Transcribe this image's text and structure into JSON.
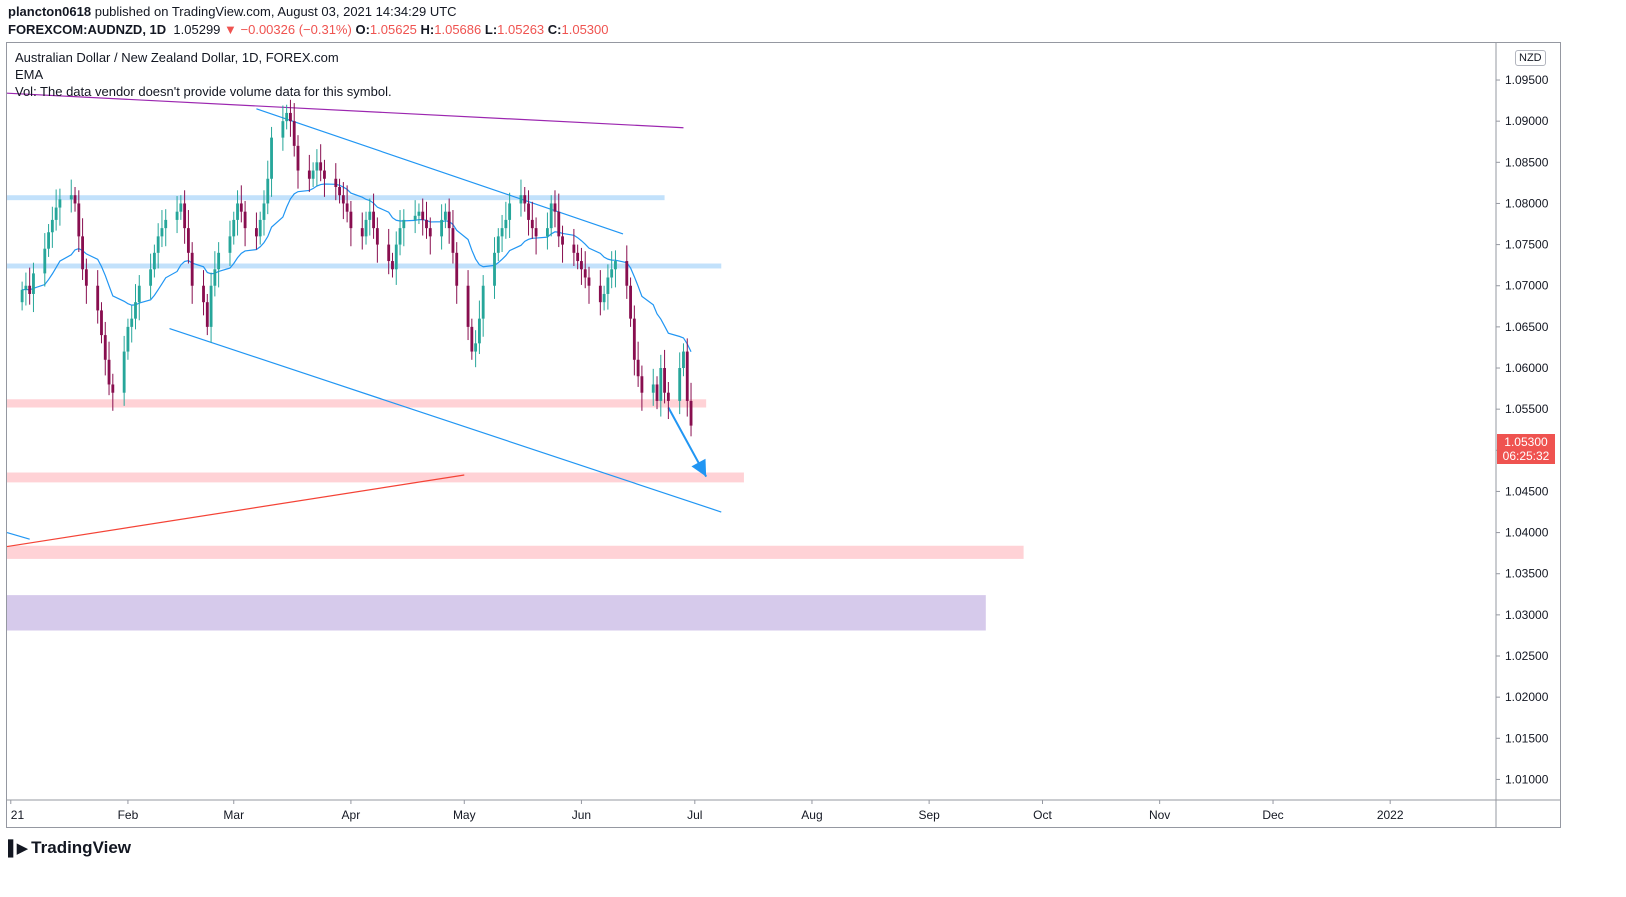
{
  "header": {
    "publisher": "plancton0618",
    "published_text": "published on TradingView.com, August 03, 2021 14:34:29 UTC",
    "symbol": "FOREXCOM:AUDNZD, 1D",
    "last": "1.05299",
    "change": "▼ −0.00326 (−0.31%)",
    "o_label": "O:",
    "o_value": "1.05625",
    "h_label": "H:",
    "h_value": "1.05686",
    "l_label": "L:",
    "l_value": "1.05263",
    "c_label": "C:",
    "c_value": "1.05300"
  },
  "legend": {
    "title": "Australian Dollar / New Zealand Dollar, 1D, FOREX.com",
    "indicator": "EMA",
    "volume_note": "Vol: The data vendor doesn't provide volume data for this symbol."
  },
  "price_axis": {
    "currency": "NZD",
    "last_price": "1.05300",
    "countdown": "06:25:32"
  },
  "branding": {
    "logo_text": "TradingView"
  },
  "colors": {
    "bull": "#26a69a",
    "bear": "#880e4f",
    "ema": "#2196f3",
    "trend_blue": "#2196f3",
    "trend_purple": "#9c27b0",
    "trend_red": "#f44336",
    "zone_blue": "#bbdefb",
    "zone_red": "#ffcdd2",
    "zone_purple": "#d1c4e9",
    "price_tag": "#ef5350"
  },
  "chart_data": {
    "type": "candlestick",
    "instrument": "AUDNZD",
    "timeframe": "1D",
    "ylim": [
      1.0075,
      1.0995
    ],
    "y_ticks": [
      "1.01000",
      "1.01500",
      "1.02000",
      "1.02500",
      "1.03000",
      "1.03500",
      "1.04000",
      "1.04500",
      "1.05000",
      "1.05500",
      "1.06000",
      "1.06500",
      "1.07000",
      "1.07500",
      "1.08000",
      "1.08500",
      "1.09000",
      "1.09500"
    ],
    "x_ticks": [
      {
        "label": "21",
        "day": 0
      },
      {
        "label": "Feb",
        "day": 31
      },
      {
        "label": "Mar",
        "day": 59
      },
      {
        "label": "Apr",
        "day": 90
      },
      {
        "label": "May",
        "day": 120
      },
      {
        "label": "Jun",
        "day": 151
      },
      {
        "label": "Jul",
        "day": 181
      },
      {
        "label": "Aug",
        "day": 212
      },
      {
        "label": "Sep",
        "day": 243
      },
      {
        "label": "Oct",
        "day": 273
      },
      {
        "label": "Nov",
        "day": 304
      },
      {
        "label": "Dec",
        "day": 334
      },
      {
        "label": "2022",
        "day": 365
      }
    ],
    "x_range_days": [
      -1,
      393
    ],
    "closes": [
      1.0695,
      1.07,
      1.069,
      1.0715,
      1.0745,
      1.0765,
      1.078,
      1.0795,
      1.0805,
      1.081,
      1.08,
      1.076,
      1.072,
      1.07,
      1.067,
      1.064,
      1.061,
      1.058,
      1.057,
      1.062,
      1.065,
      1.066,
      1.068,
      1.07,
      1.072,
      1.074,
      1.076,
      1.077,
      1.078,
      1.079,
      1.08,
      1.077,
      1.074,
      1.07,
      1.068,
      1.065,
      1.07,
      1.072,
      1.074,
      1.076,
      1.078,
      1.08,
      1.079,
      1.077,
      1.076,
      1.078,
      1.08,
      1.083,
      1.088,
      1.09,
      1.091,
      1.09,
      1.087,
      1.084,
      1.083,
      1.084,
      1.085,
      1.084,
      1.083,
      1.082,
      1.081,
      1.08,
      1.079,
      1.077,
      1.076,
      1.078,
      1.079,
      1.077,
      1.075,
      1.073,
      1.072,
      1.075,
      1.077,
      1.078,
      1.0785,
      1.079,
      1.078,
      1.077,
      1.076,
      1.078,
      1.079,
      1.077,
      1.074,
      1.07,
      1.065,
      1.062,
      1.063,
      1.066,
      1.07,
      1.074,
      1.076,
      1.077,
      1.078,
      1.08,
      1.081,
      1.08,
      1.078,
      1.077,
      1.076,
      1.077,
      1.08,
      1.079,
      1.076,
      1.075,
      1.074,
      1.073,
      1.072,
      1.071,
      1.07,
      1.068,
      1.069,
      1.071,
      1.072,
      1.073,
      1.07,
      1.066,
      1.061,
      1.059,
      1.057,
      1.058,
      1.056,
      1.06,
      1.057,
      1.056,
      1.06,
      1.062,
      1.056,
      1.053
    ],
    "ema_last": 1.0605,
    "annotations": {
      "horizontal_zones": [
        {
          "color": "zone_blue",
          "y": [
            1.0804,
            1.081
          ],
          "x_days": [
            -1,
            173
          ]
        },
        {
          "color": "zone_blue",
          "y": [
            1.0721,
            1.0727
          ],
          "x_days": [
            -1,
            188
          ]
        },
        {
          "color": "zone_red",
          "y": [
            1.0552,
            1.0562
          ],
          "x_days": [
            -1,
            184
          ]
        },
        {
          "color": "zone_red",
          "y": [
            1.0461,
            1.0473
          ],
          "x_days": [
            -1,
            194
          ]
        },
        {
          "color": "zone_red",
          "y": [
            1.0368,
            1.0384
          ],
          "x_days": [
            -1,
            268
          ]
        },
        {
          "color": "zone_purple",
          "y": [
            1.0281,
            1.0324
          ],
          "x_days": [
            -1,
            258
          ]
        }
      ],
      "trend_lines": [
        {
          "color": "trend_purple",
          "from": [
            -1,
            1.0934
          ],
          "to": [
            178,
            1.0892
          ]
        },
        {
          "color": "trend_blue",
          "from": [
            65,
            1.0915
          ],
          "to": [
            162,
            1.0763
          ]
        },
        {
          "color": "trend_blue",
          "from": [
            42,
            1.0648
          ],
          "to": [
            188,
            1.0425
          ]
        },
        {
          "color": "trend_red",
          "from": [
            -1,
            1.0383
          ],
          "to": [
            120,
            1.047
          ]
        },
        {
          "color": "trend_blue",
          "from": [
            -1,
            1.04
          ],
          "to": [
            5,
            1.0392
          ]
        }
      ],
      "arrow": {
        "color": "trend_blue",
        "from": [
          174,
          1.0552
        ],
        "to": [
          184,
          1.0468
        ]
      }
    }
  }
}
